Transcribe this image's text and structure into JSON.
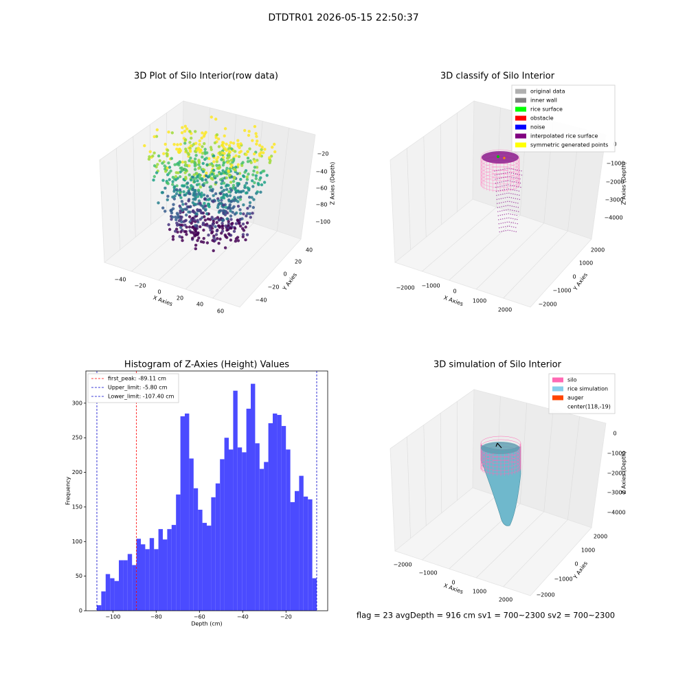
{
  "title": "DTDTR01 2026-05-15 22:50:37",
  "footer": "flag = 23  avgDepth = 916 cm  sv1 = 700~2300  sv2 = 700~2300",
  "chart_data": [
    {
      "type": "scatter3d",
      "title": "3D Plot of Silo Interior(row data)",
      "xlabel": "X Axies",
      "ylabel": "Y Axies",
      "zlabel": "Z Axies (Depth)",
      "xticks": [
        {
          "value": -40,
          "label": "−40"
        },
        {
          "value": -20,
          "label": "−20"
        },
        0,
        20,
        40,
        60
      ],
      "yticks": [
        {
          "value": -40,
          "label": "−40"
        },
        {
          "value": -20,
          "label": "−20"
        },
        0,
        20,
        40
      ],
      "zticks": [
        {
          "value": -20,
          "label": "−20"
        },
        {
          "value": -40,
          "label": "−40"
        },
        {
          "value": -60,
          "label": "−60"
        },
        {
          "value": -80,
          "label": "−80"
        },
        {
          "value": -100,
          "label": "−100"
        }
      ]
    },
    {
      "type": "classify3d",
      "title": "3D classify of Silo Interior",
      "xlabel": "X Axies",
      "ylabel": "Y Axies",
      "zlabel": "Z Axies (Depth)",
      "xticks": [
        {
          "value": -2000,
          "label": "−2000"
        },
        {
          "value": -1000,
          "label": "−1000"
        },
        0,
        1000,
        2000
      ],
      "yticks": [
        {
          "value": -2000,
          "label": "−2000"
        },
        {
          "value": -1000,
          "label": "−1000"
        },
        0,
        1000,
        2000
      ],
      "zticks": [
        0,
        {
          "value": -1000,
          "label": "−1000"
        },
        {
          "value": -2000,
          "label": "−2000"
        },
        {
          "value": -3000,
          "label": "−3000"
        },
        {
          "value": -4000,
          "label": "−4000"
        }
      ],
      "series": [
        {
          "name": "original data",
          "color": "#b0b0b0"
        },
        {
          "name": "inner wall",
          "color": "#808080"
        },
        {
          "name": "rice surface",
          "color": "#00ff00"
        },
        {
          "name": "obstacle",
          "color": "#ff0000"
        },
        {
          "name": "noise",
          "color": "#0000ff"
        },
        {
          "name": "interpolated rice surface",
          "color": "#800080"
        },
        {
          "name": "symmetric generated points",
          "color": "#ffff00"
        }
      ]
    },
    {
      "type": "histogram",
      "title": "Histogram of Z-Axies (Height) Values",
      "xlabel": "Depth (cm)",
      "ylabel": "Frequency",
      "color": "#4b4bff",
      "bins": [
        -107.4,
        -105.368,
        -103.336,
        -101.304,
        -99.272,
        -97.24,
        -95.208,
        -93.176,
        -91.144,
        -89.112,
        -87.08,
        -85.048,
        -83.016,
        -80.984,
        -78.952,
        -76.92,
        -74.888,
        -72.856,
        -70.824,
        -68.792,
        -66.76,
        -64.728,
        -62.696,
        -60.664,
        -58.632,
        -56.6,
        -54.568,
        -52.536,
        -50.504,
        -48.472,
        -46.44,
        -44.408,
        -42.376,
        -40.344,
        -38.312,
        -36.28,
        -34.248,
        -32.216,
        -30.184,
        -28.152,
        -26.12,
        -24.088,
        -22.056,
        -20.024,
        -17.992,
        -15.96,
        -13.928,
        -11.896,
        -9.864,
        -7.832,
        -5.8
      ],
      "counts": [
        8,
        28,
        53,
        47,
        43,
        73,
        73,
        82,
        66,
        104,
        96,
        89,
        105,
        89,
        118,
        103,
        118,
        124,
        168,
        281,
        285,
        220,
        177,
        146,
        127,
        123,
        164,
        184,
        219,
        250,
        233,
        318,
        236,
        229,
        292,
        328,
        242,
        205,
        215,
        271,
        285,
        283,
        267,
        233,
        157,
        173,
        195,
        165,
        161,
        47
      ],
      "xlim": [
        -112.48,
        -0.72
      ],
      "ylim": [
        0,
        346.5
      ],
      "xticks": [
        {
          "value": -100,
          "label": "−100"
        },
        {
          "value": -80,
          "label": "−80"
        },
        {
          "value": -60,
          "label": "−60"
        },
        {
          "value": -40,
          "label": "−40"
        },
        {
          "value": -20,
          "label": "−20"
        }
      ],
      "yticks": [
        0,
        50,
        100,
        150,
        200,
        250,
        300
      ],
      "vlines": [
        {
          "label": "first_peak: -89.11 cm",
          "value": -89.11,
          "color": "#ff0000"
        },
        {
          "label": "Upper_limit: -5.80 cm",
          "value": -5.8,
          "color": "#0000cc"
        },
        {
          "label": "Lower_limit: -107.40 cm",
          "value": -107.4,
          "color": "#0000cc"
        }
      ]
    },
    {
      "type": "surface3d",
      "title": "3D simulation of Silo Interior",
      "xlabel": "X Axies",
      "ylabel": "Y Axies",
      "zlabel": "Z Axies (Depth)",
      "xticks": [
        {
          "value": -2000,
          "label": "−2000"
        },
        {
          "value": -1000,
          "label": "−1000"
        },
        0,
        1000,
        2000
      ],
      "yticks": [
        {
          "value": 2000,
          "label": "2000"
        },
        {
          "value": 1000,
          "label": "1000"
        },
        0,
        {
          "value": -1000,
          "label": "−1000"
        },
        {
          "value": -2000,
          "label": "−2000"
        }
      ],
      "zticks": [
        0,
        {
          "value": -1000,
          "label": "−1000"
        },
        {
          "value": -2000,
          "label": "−2000"
        },
        {
          "value": -3000,
          "label": "−3000"
        },
        {
          "value": -4000,
          "label": "−4000"
        }
      ],
      "series": [
        {
          "name": "silo",
          "color": "#ff69b4"
        },
        {
          "name": "rice simulation",
          "color": "#87ceeb"
        },
        {
          "name": "auger",
          "color": "#ff4500"
        },
        {
          "name": "center(118,-19)",
          "color": null
        }
      ]
    }
  ]
}
